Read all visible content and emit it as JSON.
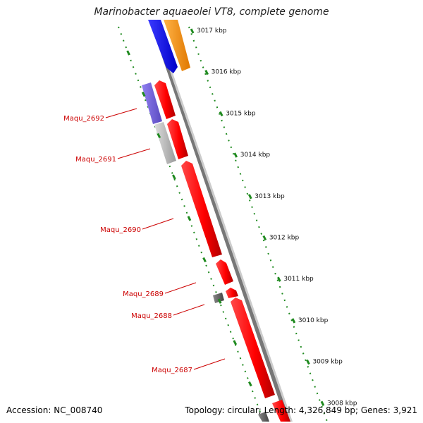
{
  "title": "Marinobacter aquaeolei VT8, complete genome",
  "footer": {
    "accession": "Accession: NC_008740",
    "stats": "Topology: circular; Length: 4,326,849 bp; Genes: 3,921"
  },
  "scale": {
    "unit": "kbp",
    "ticks": [
      "3017 kbp",
      "3016 kbp",
      "3015 kbp",
      "3014 kbp",
      "3013 kbp",
      "3012 kbp",
      "3011 kbp",
      "3010 kbp",
      "3009 kbp",
      "3008 kbp"
    ]
  },
  "gene_labels": [
    "Maqu_2692",
    "Maqu_2691",
    "Maqu_2690",
    "Maqu_2689",
    "Maqu_2688",
    "Maqu_2687"
  ],
  "colors": {
    "cds": "#ff0000",
    "outer_blue": "#0000ff",
    "outer_orange": "#ff9900",
    "purple": "#7766dd",
    "light_gray": "#bbbbbb",
    "dark_gray": "#666666",
    "backbone": "#888888",
    "tick_green": "#1f8a1f",
    "label_red": "#cc0000"
  }
}
